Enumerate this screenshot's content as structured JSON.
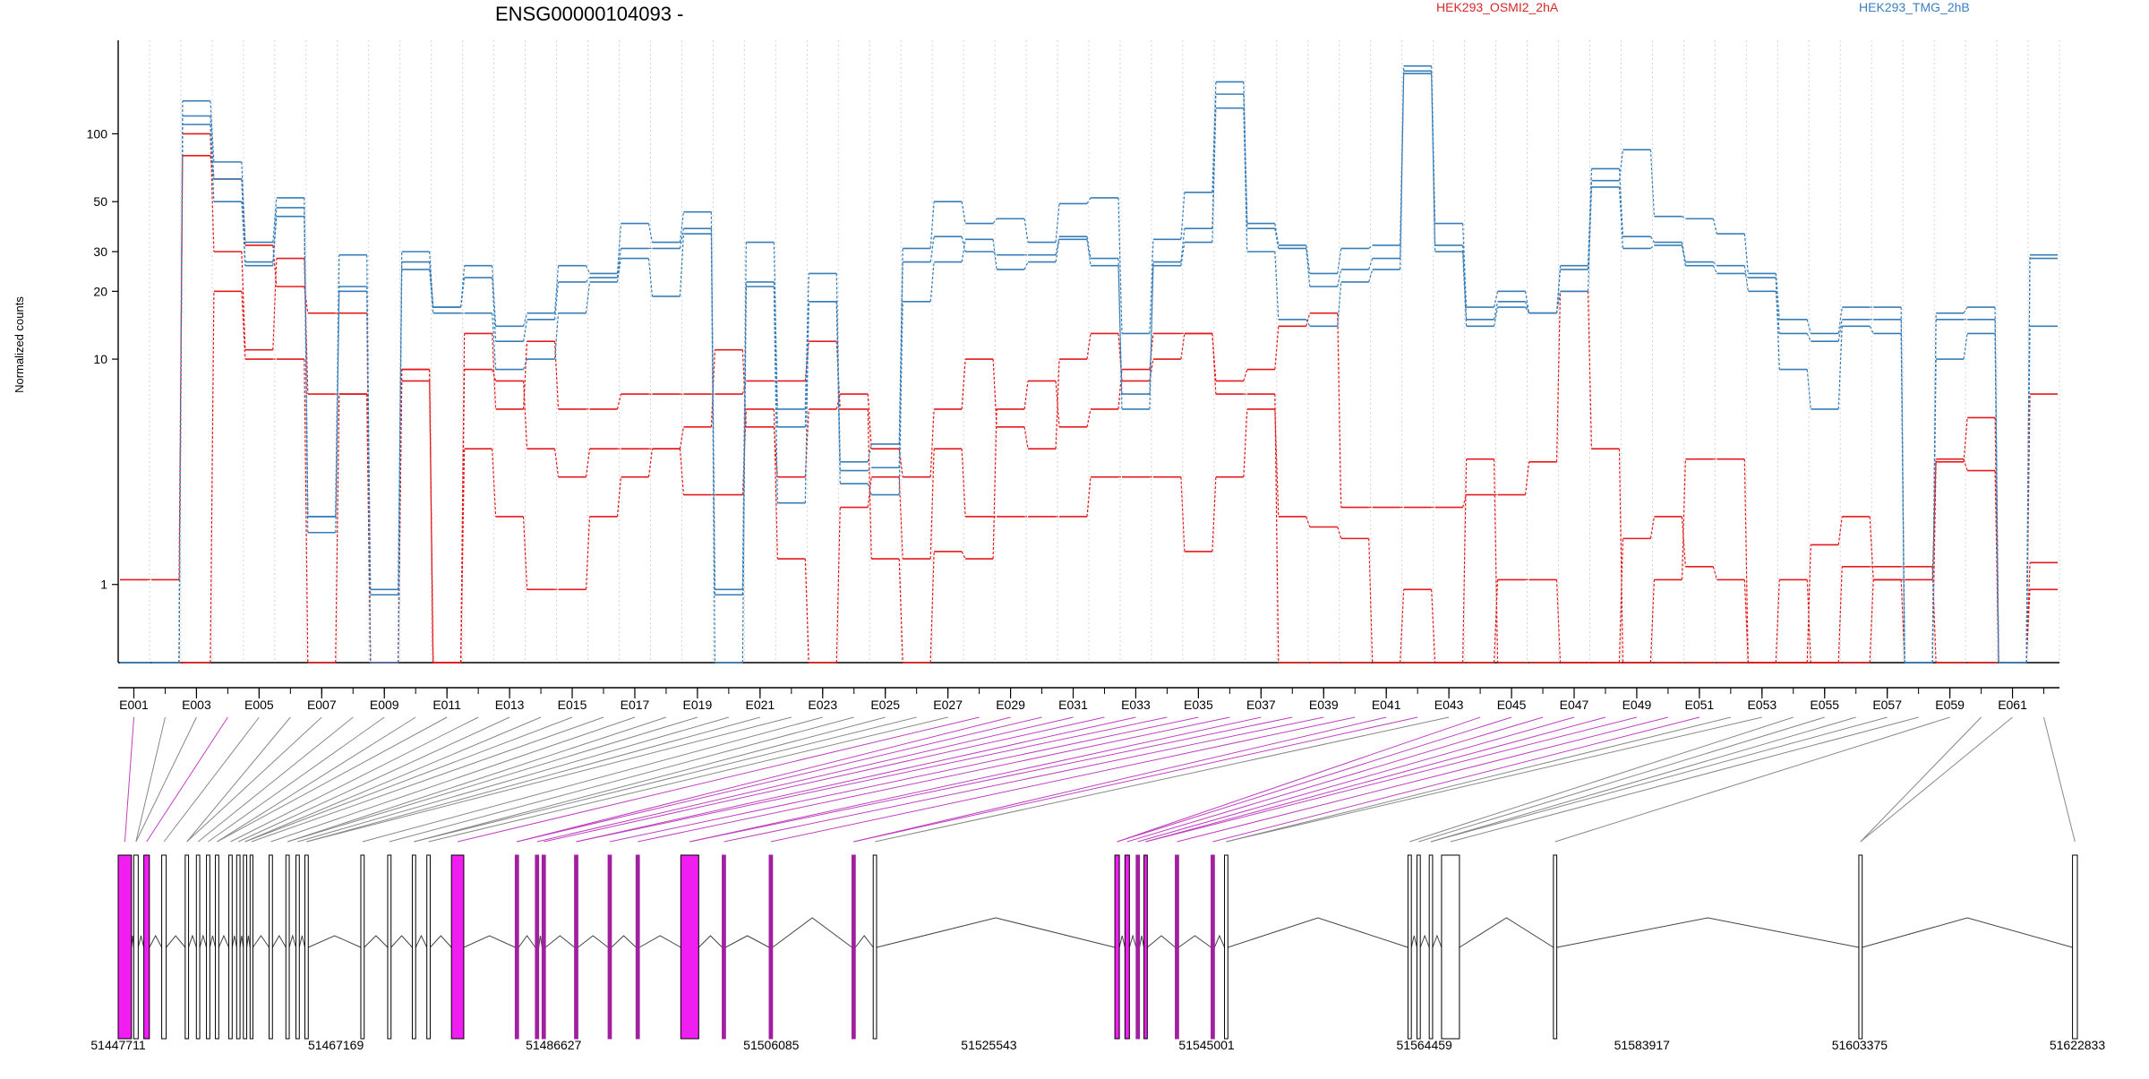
{
  "title": "ENSG00000104093 -",
  "legend": [
    {
      "name": "HEK293_OSMI2_2hA",
      "color": "#d62728"
    },
    {
      "name": "HEK293_TMG_2hB",
      "color": "#3a7fc2"
    }
  ],
  "ylabel": "Normalized counts",
  "colors": {
    "red": "#e41a1c",
    "blue": "#377eb8",
    "magenta": "#f01ef0",
    "purple": "#a020a0",
    "grid": "#d4d4d4"
  },
  "chart_data": {
    "type": "line",
    "yscale": "log",
    "ylim": [
      0.45,
      260
    ],
    "yticks": [
      1,
      10,
      20,
      30,
      50,
      100
    ],
    "exon_labels_shown": [
      "E001",
      "E003",
      "E005",
      "E007",
      "E009",
      "E011",
      "E013",
      "E015",
      "E017",
      "E019",
      "E021",
      "E023",
      "E025",
      "E027",
      "E029",
      "E031",
      "E033",
      "E035",
      "E037",
      "E039",
      "E041",
      "E043",
      "E045",
      "E047",
      "E049",
      "E051",
      "E053",
      "E055",
      "E057",
      "E059",
      "E061"
    ],
    "n_exons": 62,
    "series": [
      {
        "group": "HEK293_OSMI2_2hA",
        "color": "red",
        "values": [
          1.05,
          1.05,
          80,
          63,
          32,
          21,
          16,
          16,
          0.45,
          9,
          0.45,
          13,
          6,
          12,
          6,
          6,
          7,
          7,
          7,
          7,
          8,
          8,
          12,
          6,
          1.3,
          0.45,
          1.4,
          1.3,
          6,
          8,
          5,
          6,
          9,
          13,
          13,
          8,
          9,
          14,
          16,
          2.2,
          2.2,
          2.2,
          2.2,
          2.5,
          2.5,
          3.5,
          20,
          4,
          0.45,
          0.45,
          0.45,
          0.45,
          0.45,
          0.45,
          0.45,
          1.2,
          1.2,
          1.2,
          0.45,
          0.45,
          0.45,
          7
        ]
      },
      {
        "group": "HEK293_OSMI2_2hA",
        "color": "red",
        "values": [
          0.45,
          0.45,
          100,
          30,
          11,
          28,
          7,
          7,
          0.45,
          8,
          0.45,
          9,
          8,
          4,
          3,
          4,
          4,
          4,
          5,
          11,
          5,
          3,
          6,
          7,
          4,
          3,
          6,
          10,
          5,
          4,
          10,
          13,
          8,
          10,
          13,
          7,
          7,
          0.45,
          0.45,
          0.45,
          0.45,
          0.45,
          0.45,
          0.45,
          1.05,
          1.05,
          0.45,
          0.45,
          0.45,
          1.05,
          3.6,
          3.6,
          0.45,
          0.45,
          1.5,
          2,
          1.05,
          0.45,
          3.5,
          5.5,
          0.45,
          1.25
        ]
      },
      {
        "group": "HEK293_OSMI2_2hA",
        "color": "red",
        "values": [
          0.45,
          0.45,
          0.45,
          20,
          10,
          10,
          0.45,
          7,
          0.45,
          9,
          0.45,
          4,
          2,
          0.95,
          0.95,
          2,
          3,
          4,
          2.5,
          2.5,
          6,
          1.3,
          0.45,
          2.2,
          3,
          1.3,
          4,
          2,
          2,
          2,
          2,
          3,
          3,
          3,
          1.4,
          3,
          6,
          2,
          1.8,
          1.6,
          0.45,
          0.95,
          0.45,
          3.6,
          0.45,
          0.45,
          0.45,
          0.45,
          1.6,
          2,
          1.2,
          1.05,
          0.45,
          1.05,
          0.45,
          0.45,
          1.05,
          1.05,
          3.6,
          3.2,
          0.45,
          0.95
        ]
      },
      {
        "group": "HEK293_TMG_2hB",
        "color": "blue",
        "values": [
          0.45,
          0.45,
          140,
          75,
          33,
          52,
          2,
          29,
          0.45,
          30,
          17,
          26,
          14,
          16,
          26,
          24,
          40,
          33,
          45,
          0.95,
          33,
          6,
          24,
          3.5,
          4.2,
          31,
          50,
          40,
          42,
          33,
          49,
          52,
          13,
          34,
          55,
          170,
          40,
          32,
          24,
          31,
          32,
          200,
          40,
          17,
          20,
          16,
          26,
          62,
          85,
          43,
          42,
          36,
          24,
          15,
          13,
          17,
          17,
          0.45,
          16,
          17,
          0.45,
          29
        ]
      },
      {
        "group": "HEK293_TMG_2hB",
        "color": "blue",
        "values": [
          0.45,
          0.45,
          110,
          50,
          27,
          47,
          2,
          21,
          0.95,
          27,
          17,
          23,
          12,
          15,
          22,
          23,
          31,
          31,
          38,
          0.45,
          22,
          5,
          18,
          3.2,
          3.3,
          27,
          35,
          30,
          29,
          29,
          35,
          28,
          6,
          27,
          38,
          150,
          38,
          31,
          21,
          25,
          28,
          190,
          32,
          15,
          18,
          16,
          25,
          70,
          35,
          33,
          27,
          26,
          20,
          13,
          12,
          15,
          15,
          0.45,
          15,
          15,
          0.45,
          28
        ]
      },
      {
        "group": "HEK293_TMG_2hB",
        "color": "blue",
        "values": [
          0.45,
          0.45,
          120,
          63,
          26,
          43,
          1.7,
          20,
          0.9,
          25,
          16,
          16,
          9,
          10,
          16,
          22,
          28,
          19,
          36,
          0.9,
          21,
          2.3,
          18,
          2.8,
          2.5,
          18,
          27,
          34,
          25,
          27,
          34,
          26,
          7,
          26,
          33,
          130,
          30,
          15,
          14,
          22,
          25,
          185,
          30,
          14,
          17,
          16,
          20,
          58,
          31,
          32,
          26,
          24,
          23,
          9,
          6,
          14,
          13,
          0.45,
          10,
          13,
          0.45,
          14
        ]
      }
    ]
  },
  "coords": {
    "labels": [
      "51447711",
      "51467169",
      "51486627",
      "51506085",
      "51525543",
      "51545001",
      "51564459",
      "51583917",
      "51603375",
      "51622833"
    ],
    "start": 51447711,
    "end": 51622833
  },
  "exons": [
    [
      51447711,
      51448900,
      "m"
    ],
    [
      51449100,
      51449500,
      "b"
    ],
    [
      51450000,
      51450500,
      "m"
    ],
    [
      51451600,
      51452000,
      "b"
    ],
    [
      51453700,
      51454000,
      "b"
    ],
    [
      51454700,
      51455000,
      "b"
    ],
    [
      51455600,
      51455900,
      "b"
    ],
    [
      51456400,
      51456700,
      "b"
    ],
    [
      51457600,
      51457900,
      "b"
    ],
    [
      51458300,
      51458600,
      "b"
    ],
    [
      51458900,
      51459200,
      "b"
    ],
    [
      51459500,
      51459750,
      "b"
    ],
    [
      51461200,
      51461500,
      "b"
    ],
    [
      51462700,
      51463000,
      "b"
    ],
    [
      51463600,
      51463900,
      "b"
    ],
    [
      51464400,
      51464700,
      "b"
    ],
    [
      51469400,
      51469700,
      "b"
    ],
    [
      51471800,
      51472100,
      "b"
    ],
    [
      51474000,
      51474300,
      "b"
    ],
    [
      51475300,
      51475600,
      "b"
    ],
    [
      51477500,
      51478600,
      "m"
    ],
    [
      51483200,
      51483500,
      "p"
    ],
    [
      51485000,
      51485300,
      "p"
    ],
    [
      51485600,
      51485900,
      "p"
    ],
    [
      51488500,
      51488800,
      "p"
    ],
    [
      51491500,
      51491800,
      "p"
    ],
    [
      51494000,
      51494300,
      "p"
    ],
    [
      51498000,
      51499600,
      "m"
    ],
    [
      51501700,
      51502000,
      "p"
    ],
    [
      51505900,
      51506200,
      "p"
    ],
    [
      51513300,
      51513600,
      "p"
    ],
    [
      51515200,
      51515500,
      "b"
    ],
    [
      51536800,
      51537200,
      "m"
    ],
    [
      51537700,
      51538100,
      "m"
    ],
    [
      51538700,
      51539000,
      "p"
    ],
    [
      51539400,
      51539700,
      "m"
    ],
    [
      51542200,
      51542500,
      "p"
    ],
    [
      51545400,
      51545700,
      "p"
    ],
    [
      51546600,
      51546900,
      "b"
    ],
    [
      51563000,
      51563300,
      "b"
    ],
    [
      51563800,
      51564100,
      "b"
    ],
    [
      51564900,
      51565200,
      "b"
    ],
    [
      51566000,
      51567600,
      "b"
    ],
    [
      51576000,
      51576300,
      "b"
    ],
    [
      51603300,
      51603600,
      "b"
    ],
    [
      51622400,
      51622833,
      "b"
    ]
  ]
}
